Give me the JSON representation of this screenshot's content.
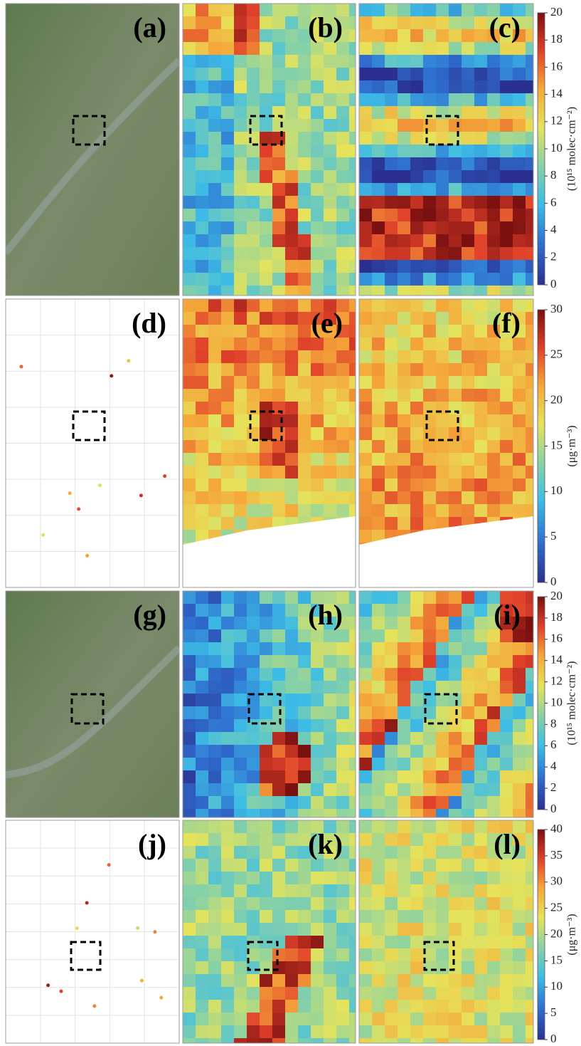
{
  "panels": [
    {
      "label": "(a)"
    },
    {
      "label": "(b)"
    },
    {
      "label": "(c)"
    },
    {
      "label": "(d)"
    },
    {
      "label": "(e)"
    },
    {
      "label": "(f)"
    },
    {
      "label": "(g)"
    },
    {
      "label": "(h)"
    },
    {
      "label": "(i)"
    },
    {
      "label": "(j)"
    },
    {
      "label": "(k)"
    },
    {
      "label": "(l)"
    }
  ],
  "colorbars": [
    {
      "label": "(10¹⁵ molec·cm⁻²)",
      "ticks": [
        0,
        2,
        4,
        6,
        8,
        10,
        12,
        14,
        16,
        18,
        20
      ]
    },
    {
      "label": "(μg·m⁻³)",
      "ticks": [
        0,
        5,
        10,
        15,
        20,
        25,
        30
      ]
    },
    {
      "label": "(10¹⁵ molec·cm⁻²)",
      "ticks": [
        0,
        2,
        4,
        6,
        8,
        10,
        12,
        14,
        16,
        18,
        20
      ]
    },
    {
      "label": "(μg·m⁻³)",
      "ticks": [
        0,
        5,
        10,
        15,
        20,
        25,
        30,
        35,
        40
      ]
    }
  ]
}
